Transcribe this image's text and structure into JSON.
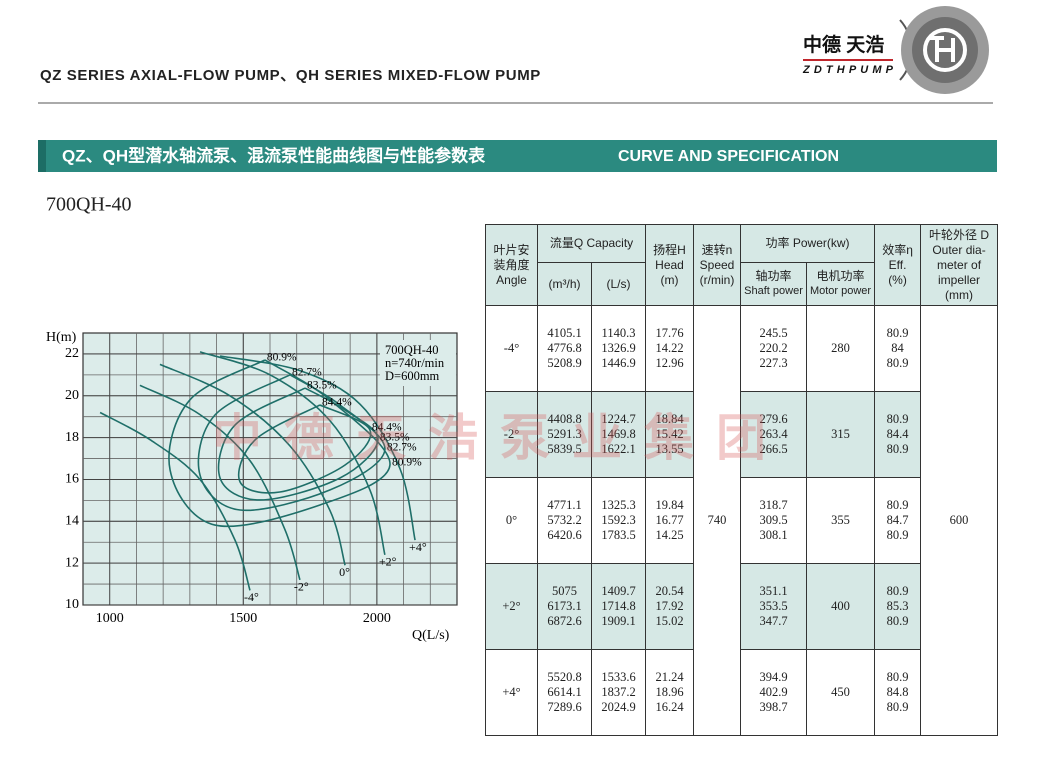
{
  "header": {
    "title": "QZ SERIES AXIAL-FLOW PUMP、QH SERIES MIXED-FLOW PUMP",
    "logo_cn": "中德 天浩",
    "logo_en": "ZDTHPUMP"
  },
  "banner": {
    "title_cn": "QZ、QH型潜水轴流泵、混流泵性能曲线图与性能参数表",
    "title_en": "CURVE AND SPECIFICATION"
  },
  "model": "700QH-40",
  "watermark": "中德天浩泵业集团",
  "chart_data": {
    "type": "line",
    "y_label": "H(m)",
    "x_label": "Q(L/s)",
    "annotation_lines": [
      "700QH-40",
      "n=740r/min",
      "D=600mm"
    ],
    "xlim": [
      900,
      2300
    ],
    "ylim": [
      10,
      23
    ],
    "xticks": [
      1000,
      1500,
      2000
    ],
    "yticks": [
      10,
      12,
      14,
      16,
      18,
      20,
      22
    ],
    "grid": true,
    "series": [
      {
        "name": "-4°",
        "color": "#1f6f69",
        "x": [
          964,
          1151,
          1338,
          1469,
          1525
        ],
        "values": [
          19.2,
          17.9,
          16.0,
          13.1,
          10.7
        ]
      },
      {
        "name": "-2°",
        "color": "#1f6f69",
        "x": [
          1113,
          1338,
          1525,
          1656,
          1712
        ],
        "values": [
          20.5,
          19.1,
          16.9,
          13.6,
          11.2
        ]
      },
      {
        "name": "0°",
        "color": "#1f6f69",
        "x": [
          1188,
          1450,
          1675,
          1825,
          1881
        ],
        "values": [
          21.5,
          20.0,
          17.6,
          14.5,
          11.9
        ]
      },
      {
        "name": "+2°",
        "color": "#1f6f69",
        "x": [
          1338,
          1600,
          1825,
          1974,
          2030
        ],
        "values": [
          22.1,
          21.0,
          18.8,
          15.5,
          12.4
        ]
      },
      {
        "name": "+4°",
        "color": "#1f6f69",
        "x": [
          1413,
          1712,
          1937,
          2087,
          2143
        ],
        "values": [
          21.9,
          21.2,
          19.6,
          16.5,
          13.1
        ]
      }
    ],
    "contours": [
      {
        "name": "80.9%",
        "color": "#1f6f69",
        "x": [
          1581,
          1300,
          1226,
          1394,
          1787,
          2049,
          1825,
          1581
        ],
        "values": [
          21.71,
          19.8,
          16.45,
          13.82,
          14.78,
          16.69,
          19.8,
          21.71
        ]
      },
      {
        "name": "82.7%",
        "color": "#1f6f69",
        "x": [
          1675,
          1394,
          1338,
          1488,
          1825,
          2030,
          1862,
          1675
        ],
        "values": [
          21.0,
          19.08,
          16.21,
          14.54,
          15.5,
          17.41,
          19.56,
          21.0
        ]
      },
      {
        "name": "83.5%",
        "color": "#1f6f69",
        "x": [
          1731,
          1469,
          1413,
          1563,
          1862,
          2004,
          1881,
          1731
        ],
        "values": [
          20.37,
          18.6,
          16.07,
          15.02,
          16.07,
          17.89,
          19.32,
          20.37
        ]
      },
      {
        "name": "84.4%",
        "color": "#1f6f69",
        "x": [
          1787,
          1544,
          1488,
          1637,
          1881,
          1974,
          1787
        ],
        "values": [
          19.56,
          17.89,
          15.88,
          15.4,
          16.69,
          18.37,
          19.56
        ]
      }
    ]
  },
  "table": {
    "headers": {
      "angle": "叶片安装角度",
      "angle_en": "Angle",
      "capacity": "流量Q Capacity",
      "unit_m3h": "(m³/h)",
      "unit_ls": "(L/s)",
      "head": "扬程H",
      "head_en": "Head",
      "head_unit": "(m)",
      "speed": "速转n",
      "speed_en": "Speed",
      "speed_unit": "(r/min)",
      "power": "功率 Power(kw)",
      "shaft": "轴功率",
      "shaft_en": "Shaft power",
      "motor": "电机功率",
      "motor_en": "Motor power",
      "eff": "效率η",
      "eff_en": "Eff.",
      "eff_unit": "(%)",
      "dia": "叶轮外径 D",
      "dia_en": "Outer dia-meter of impeller",
      "dia_unit": "(mm)"
    },
    "speed": "740",
    "diameter": "600",
    "rows": [
      {
        "angle": "-4°",
        "capacity_m3h": [
          "4105.1",
          "4776.8",
          "5208.9"
        ],
        "capacity_ls": [
          "1140.3",
          "1326.9",
          "1446.9"
        ],
        "head": [
          "17.76",
          "14.22",
          "12.96"
        ],
        "shaft_power": [
          "245.5",
          "220.2",
          "227.3"
        ],
        "motor_power": "280",
        "eff": [
          "80.9",
          "84",
          "80.9"
        ]
      },
      {
        "angle": "-2°",
        "capacity_m3h": [
          "4408.8",
          "5291.3",
          "5839.5"
        ],
        "capacity_ls": [
          "1224.7",
          "1469.8",
          "1622.1"
        ],
        "head": [
          "18.84",
          "15.42",
          "13.55"
        ],
        "shaft_power": [
          "279.6",
          "263.4",
          "266.5"
        ],
        "motor_power": "315",
        "eff": [
          "80.9",
          "84.4",
          "80.9"
        ]
      },
      {
        "angle": "0°",
        "capacity_m3h": [
          "4771.1",
          "5732.2",
          "6420.6"
        ],
        "capacity_ls": [
          "1325.3",
          "1592.3",
          "1783.5"
        ],
        "head": [
          "19.84",
          "16.77",
          "14.25"
        ],
        "shaft_power": [
          "318.7",
          "309.5",
          "308.1"
        ],
        "motor_power": "355",
        "eff": [
          "80.9",
          "84.7",
          "80.9"
        ]
      },
      {
        "angle": "+2°",
        "capacity_m3h": [
          "5075",
          "6173.1",
          "6872.6"
        ],
        "capacity_ls": [
          "1409.7",
          "1714.8",
          "1909.1"
        ],
        "head": [
          "20.54",
          "17.92",
          "15.02"
        ],
        "shaft_power": [
          "351.1",
          "353.5",
          "347.7"
        ],
        "motor_power": "400",
        "eff": [
          "80.9",
          "85.3",
          "80.9"
        ]
      },
      {
        "angle": "+4°",
        "capacity_m3h": [
          "5520.8",
          "6614.1",
          "7289.6"
        ],
        "capacity_ls": [
          "1533.6",
          "1837.2",
          "2024.9"
        ],
        "head": [
          "21.24",
          "18.96",
          "16.24"
        ],
        "shaft_power": [
          "394.9",
          "402.9",
          "398.7"
        ],
        "motor_power": "450",
        "eff": [
          "80.9",
          "84.8",
          "80.9"
        ]
      }
    ]
  }
}
